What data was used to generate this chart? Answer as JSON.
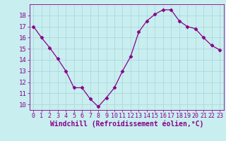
{
  "x": [
    0,
    1,
    2,
    3,
    4,
    5,
    6,
    7,
    8,
    9,
    10,
    11,
    12,
    13,
    14,
    15,
    16,
    17,
    18,
    19,
    20,
    21,
    22,
    23
  ],
  "y": [
    17,
    16,
    15.1,
    14.1,
    13,
    11.5,
    11.5,
    10.5,
    9.8,
    10.6,
    11.5,
    13,
    14.3,
    16.5,
    17.5,
    18.1,
    18.5,
    18.5,
    17.5,
    17,
    16.8,
    16,
    15.3,
    14.9
  ],
  "line_color": "#880088",
  "marker": "D",
  "marker_size": 2.5,
  "bg_color": "#c8eef0",
  "grid_color": "#aad4d8",
  "xlabel": "Windchill (Refroidissement éolien,°C)",
  "xlabel_fontsize": 7,
  "tick_fontsize": 6.5,
  "ylim": [
    9.5,
    19.0
  ],
  "xlim": [
    -0.5,
    23.5
  ],
  "yticks": [
    10,
    11,
    12,
    13,
    14,
    15,
    16,
    17,
    18
  ],
  "xticks": [
    0,
    1,
    2,
    3,
    4,
    5,
    6,
    7,
    8,
    9,
    10,
    11,
    12,
    13,
    14,
    15,
    16,
    17,
    18,
    19,
    20,
    21,
    22,
    23
  ]
}
